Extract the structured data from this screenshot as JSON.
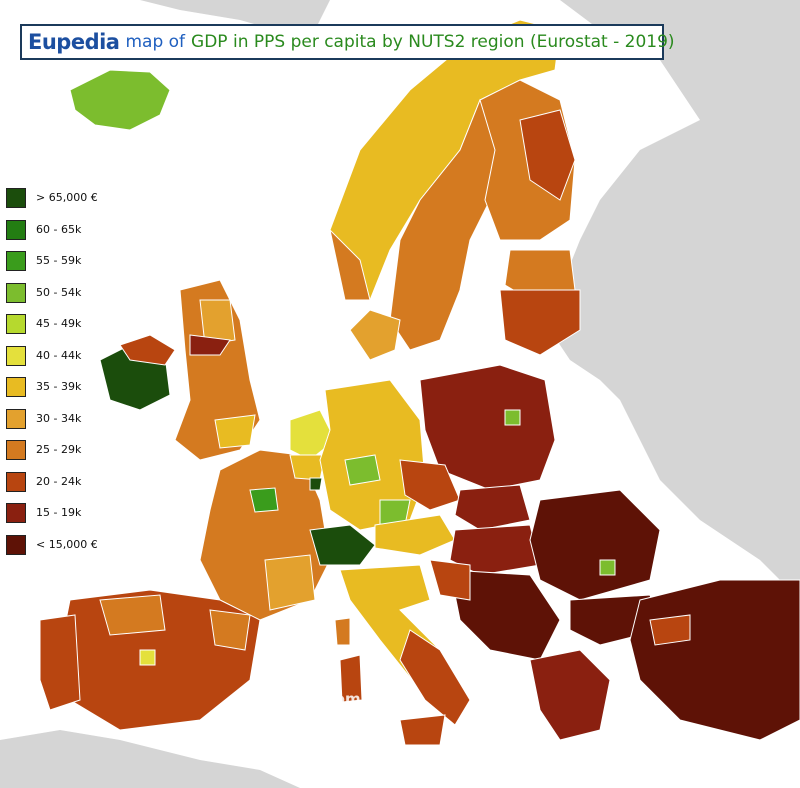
{
  "title": {
    "brand": "Eupedia",
    "map_word": "map of",
    "rest": "GDP in PPS per capita by NUTS2 region (Eurostat - 2019)"
  },
  "legend": [
    {
      "label": "> 65,000 €",
      "color": "#1b4d0c"
    },
    {
      "label": "60 - 65k",
      "color": "#237d12"
    },
    {
      "label": "55 - 59k",
      "color": "#3a9c1c"
    },
    {
      "label": "50 - 54k",
      "color": "#7cbd2e"
    },
    {
      "label": "45 - 49k",
      "color": "#b6d92e"
    },
    {
      "label": "40 - 44k",
      "color": "#e4e03c"
    },
    {
      "label": "35 - 39k",
      "color": "#e8bb22"
    },
    {
      "label": "30 - 34k",
      "color": "#e3a12e"
    },
    {
      "label": "25 - 29k",
      "color": "#d47a20"
    },
    {
      "label": "20 - 24k",
      "color": "#b84510"
    },
    {
      "label": "15 - 19k",
      "color": "#8a2010"
    },
    {
      "label": "< 15,000 €",
      "color": "#5e1206"
    }
  ],
  "watermark": "@ Eupedia.com",
  "colors": {
    "sea": "#ffffff",
    "non_eu_land": "#d5d5d5",
    "border": "#ffffff"
  }
}
